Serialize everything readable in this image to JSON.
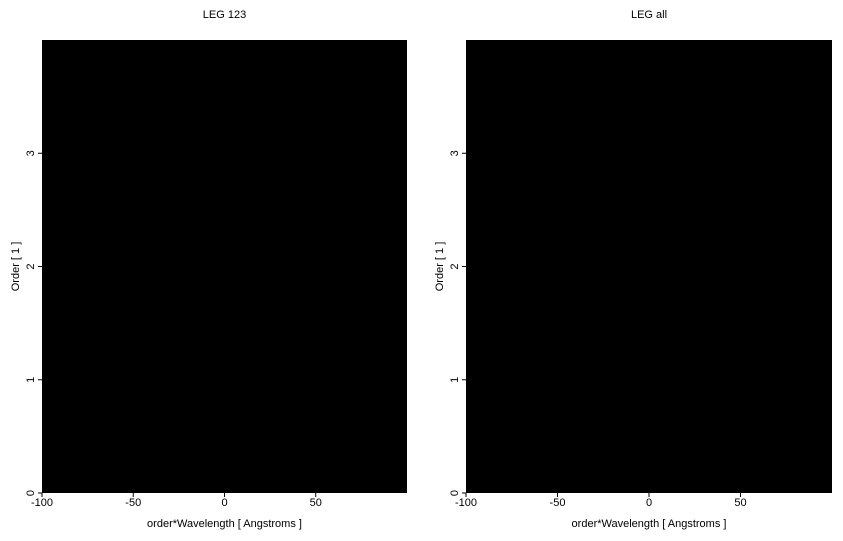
{
  "chart_data": [
    {
      "type": "image",
      "title": "LEG 123",
      "x_label": "order*Wavelength [ Angstroms ]",
      "y_label": "Order [ 1 ]",
      "xlim": [
        -100,
        100
      ],
      "ylim": [
        0,
        4
      ],
      "xticks": [
        -100,
        -50,
        0,
        50
      ],
      "yticks": [
        0,
        1,
        2,
        3
      ],
      "background": "#000000"
    },
    {
      "type": "image",
      "title": "LEG all",
      "x_label": "order*Wavelength [ Angstroms ]",
      "y_label": "Order [ 1 ]",
      "xlim": [
        -100,
        100
      ],
      "ylim": [
        0,
        4
      ],
      "xticks": [
        -100,
        -50,
        0,
        50
      ],
      "yticks": [
        0,
        1,
        2,
        3
      ],
      "background": "#000000"
    }
  ]
}
